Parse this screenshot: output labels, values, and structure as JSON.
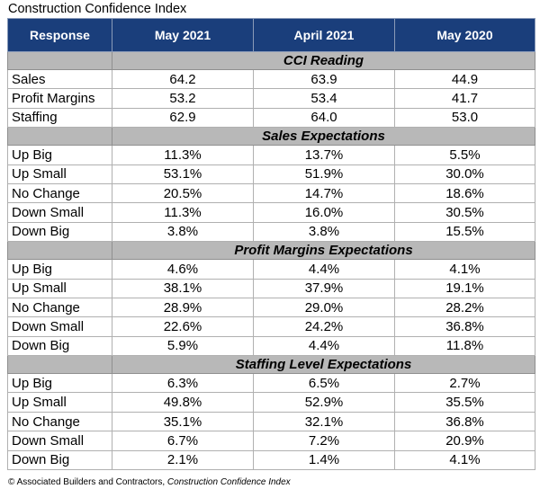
{
  "caption": "Construction Confidence Index",
  "headers": [
    "Response",
    "May 2021",
    "April 2021",
    "May 2020"
  ],
  "sections": [
    {
      "title": "CCI Reading",
      "rows": [
        {
          "label": "Sales",
          "values": [
            "64.2",
            "63.9",
            "44.9"
          ]
        },
        {
          "label": "Profit Margins",
          "values": [
            "53.2",
            "53.4",
            "41.7"
          ]
        },
        {
          "label": "Staffing",
          "values": [
            "62.9",
            "64.0",
            "53.0"
          ]
        }
      ]
    },
    {
      "title": "Sales Expectations",
      "rows": [
        {
          "label": "Up Big",
          "values": [
            "11.3%",
            "13.7%",
            "5.5%"
          ]
        },
        {
          "label": "Up Small",
          "values": [
            "53.1%",
            "51.9%",
            "30.0%"
          ]
        },
        {
          "label": "No Change",
          "values": [
            "20.5%",
            "14.7%",
            "18.6%"
          ]
        },
        {
          "label": "Down Small",
          "values": [
            "11.3%",
            "16.0%",
            "30.5%"
          ]
        },
        {
          "label": "Down Big",
          "values": [
            "3.8%",
            "3.8%",
            "15.5%"
          ]
        }
      ]
    },
    {
      "title": "Profit Margins Expectations",
      "rows": [
        {
          "label": "Up Big",
          "values": [
            "4.6%",
            "4.4%",
            "4.1%"
          ]
        },
        {
          "label": "Up Small",
          "values": [
            "38.1%",
            "37.9%",
            "19.1%"
          ]
        },
        {
          "label": "No Change",
          "values": [
            "28.9%",
            "29.0%",
            "28.2%"
          ]
        },
        {
          "label": "Down Small",
          "values": [
            "22.6%",
            "24.2%",
            "36.8%"
          ]
        },
        {
          "label": "Down Big",
          "values": [
            "5.9%",
            "4.4%",
            "11.8%"
          ]
        }
      ]
    },
    {
      "title": "Staffing Level Expectations",
      "rows": [
        {
          "label": "Up Big",
          "values": [
            "6.3%",
            "6.5%",
            "2.7%"
          ]
        },
        {
          "label": "Up Small",
          "values": [
            "49.8%",
            "52.9%",
            "35.5%"
          ]
        },
        {
          "label": "No Change",
          "values": [
            "35.1%",
            "32.1%",
            "36.8%"
          ]
        },
        {
          "label": "Down Small",
          "values": [
            "6.7%",
            "7.2%",
            "20.9%"
          ]
        },
        {
          "label": "Down Big",
          "values": [
            "2.1%",
            "1.4%",
            "4.1%"
          ]
        }
      ]
    }
  ],
  "footnote": {
    "prefix": "© Associated Builders and Contractors, ",
    "source": "Construction Confidence Index"
  },
  "colors": {
    "header_bg": "#1a3e7b",
    "section_bg": "#b8b8b8"
  }
}
